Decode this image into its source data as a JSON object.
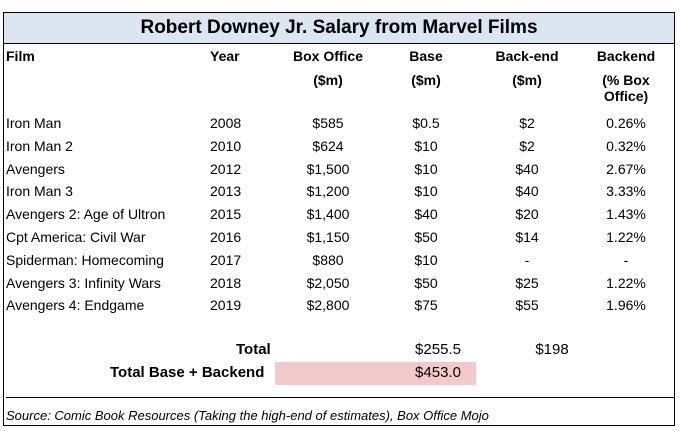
{
  "title": "Robert Downey Jr. Salary from Marvel Films",
  "headers": {
    "film": "Film",
    "year": "Year",
    "box_office": "Box Office",
    "box_office_unit": "($m)",
    "base": "Base",
    "base_unit": "($m)",
    "back_end": "Back-end",
    "back_end_unit": "($m)",
    "backend_pct": "Backend",
    "backend_pct_unit": "(% Box Office)"
  },
  "rows": [
    {
      "film": "Iron Man",
      "year": "2008",
      "box_office": "$585",
      "base": "$0.5",
      "back_end": "$2",
      "pct": "0.26%"
    },
    {
      "film": "Iron Man 2",
      "year": "2010",
      "box_office": "$624",
      "base": "$10",
      "back_end": "$2",
      "pct": "0.32%"
    },
    {
      "film": "Avengers",
      "year": "2012",
      "box_office": "$1,500",
      "base": "$10",
      "back_end": "$40",
      "pct": "2.67%"
    },
    {
      "film": "Iron Man 3",
      "year": "2013",
      "box_office": "$1,200",
      "base": "$10",
      "back_end": "$40",
      "pct": "3.33%"
    },
    {
      "film": "Avengers 2: Age of Ultron",
      "year": "2015",
      "box_office": "$1,400",
      "base": "$40",
      "back_end": "$20",
      "pct": "1.43%"
    },
    {
      "film": "Cpt America: Civil War",
      "year": "2016",
      "box_office": "$1,150",
      "base": "$50",
      "back_end": "$14",
      "pct": "1.22%"
    },
    {
      "film": "Spiderman: Homecoming",
      "year": "2017",
      "box_office": "$880",
      "base": "$10",
      "back_end": "-",
      "pct": "-"
    },
    {
      "film": "Avengers 3: Infinity Wars",
      "year": "2018",
      "box_office": "$2,050",
      "base": "$50",
      "back_end": "$25",
      "pct": "1.22%"
    },
    {
      "film": "Avengers 4: Endgame",
      "year": "2019",
      "box_office": "$2,800",
      "base": "$75",
      "back_end": "$55",
      "pct": "1.96%"
    }
  ],
  "totals": {
    "total_label": "Total",
    "total_base": "$255.5",
    "total_back_end": "$198",
    "grand_label": "Total Base + Backend",
    "grand_value": "$453.0"
  },
  "source": "Source: Comic Book Resources (Taking the high-end of estimates), Box Office Mojo"
}
